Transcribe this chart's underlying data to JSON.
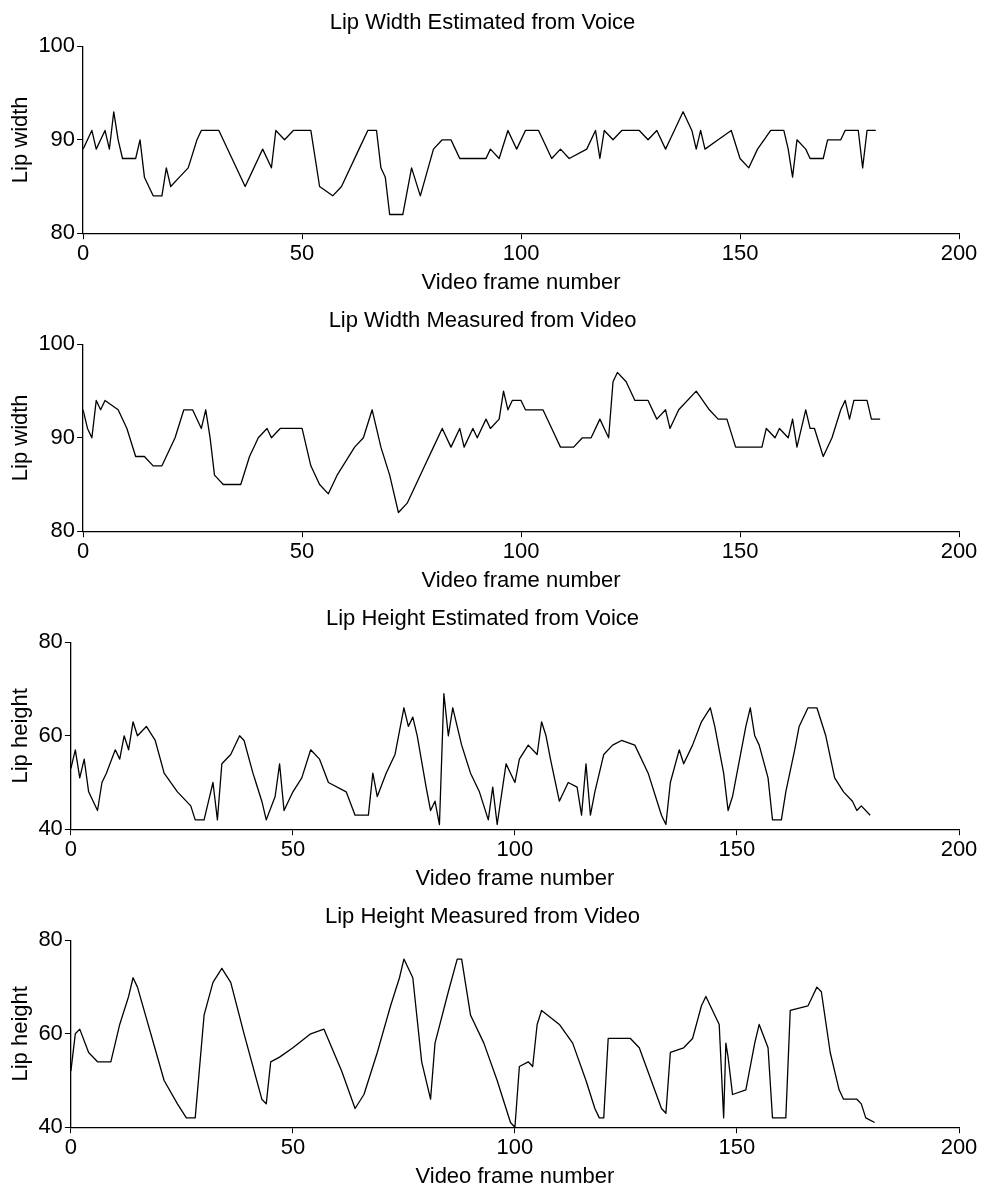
{
  "chart_data": [
    {
      "type": "line",
      "title": "Lip Width Estimated from Voice",
      "xlabel": "Video frame number",
      "ylabel": "Lip width",
      "xlim": [
        0,
        200
      ],
      "ylim": [
        80,
        100
      ],
      "xticks": [
        0,
        50,
        100,
        150,
        200
      ],
      "yticks": [
        80,
        90,
        100
      ],
      "grid": false,
      "legend": false,
      "marker": "none",
      "line_style": "solid",
      "x": [
        0,
        1,
        2,
        3,
        4,
        5,
        6,
        7,
        8,
        9,
        12,
        13,
        14,
        16,
        18,
        19,
        20,
        22,
        24,
        26,
        27,
        31,
        34,
        37,
        40,
        41,
        43,
        44,
        46,
        48,
        52,
        54,
        57,
        59,
        63,
        65,
        67,
        68,
        69,
        70,
        73,
        75,
        77,
        80,
        82,
        84,
        85,
        86,
        92,
        93,
        95,
        97,
        99,
        101,
        104,
        107,
        109,
        111,
        115,
        117,
        118,
        119,
        121,
        123,
        127,
        129,
        131,
        133,
        134,
        135,
        137,
        139,
        140,
        141,
        142,
        145,
        148,
        150,
        152,
        154,
        157,
        160,
        161,
        162,
        163,
        165,
        166,
        169,
        170,
        173,
        174,
        177,
        178,
        179,
        181
      ],
      "series": [
        {
          "color": "#000000",
          "values": [
            89,
            90,
            91,
            89,
            90,
            91,
            89,
            93,
            90,
            88,
            88,
            90,
            86,
            84,
            84,
            87,
            85,
            86,
            87,
            90,
            91,
            91,
            88,
            85,
            88,
            89,
            87,
            91,
            90,
            91,
            91,
            85,
            84,
            85,
            89,
            91,
            91,
            87,
            86,
            82,
            82,
            87,
            84,
            89,
            90,
            90,
            89,
            88,
            88,
            89,
            88,
            91,
            89,
            91,
            91,
            88,
            89,
            88,
            89,
            91,
            88,
            91,
            90,
            91,
            91,
            90,
            91,
            89,
            90,
            91,
            93,
            91,
            89,
            91,
            89,
            90,
            91,
            88,
            87,
            89,
            91,
            91,
            89,
            86,
            90,
            89,
            88,
            88,
            90,
            90,
            91,
            91,
            87,
            91,
            91
          ]
        }
      ]
    },
    {
      "type": "line",
      "title": "Lip Width Measured from Video",
      "xlabel": "Video frame number",
      "ylabel": "Lip width",
      "xlim": [
        0,
        200
      ],
      "ylim": [
        80,
        100
      ],
      "xticks": [
        0,
        50,
        100,
        150,
        200
      ],
      "yticks": [
        80,
        90,
        100
      ],
      "grid": false,
      "legend": false,
      "marker": "none",
      "line_style": "solid",
      "x": [
        0,
        1,
        2,
        3,
        4,
        5,
        8,
        10,
        12,
        14,
        16,
        18,
        21,
        23,
        25,
        27,
        28,
        29,
        30,
        32,
        36,
        38,
        40,
        42,
        43,
        45,
        50,
        52,
        54,
        56,
        58,
        62,
        64,
        66,
        68,
        70,
        72,
        74,
        76,
        78,
        80,
        82,
        84,
        86,
        87,
        89,
        90,
        92,
        93,
        95,
        96,
        97,
        98,
        100,
        101,
        105,
        108,
        109,
        112,
        114,
        116,
        118,
        119,
        120,
        121,
        122,
        124,
        126,
        129,
        131,
        133,
        134,
        136,
        140,
        143,
        145,
        147,
        149,
        153,
        155,
        156,
        158,
        159,
        161,
        162,
        163,
        165,
        166,
        167,
        169,
        171,
        173,
        174,
        175,
        176,
        179,
        180,
        182
      ],
      "series": [
        {
          "color": "#000000",
          "values": [
            93,
            91,
            90,
            94,
            93,
            94,
            93,
            91,
            88,
            88,
            87,
            87,
            90,
            93,
            93,
            91,
            93,
            90,
            86,
            85,
            85,
            88,
            90,
            91,
            90,
            91,
            91,
            87,
            85,
            84,
            86,
            89,
            90,
            93,
            89,
            86,
            82,
            83,
            85,
            87,
            89,
            91,
            89,
            91,
            89,
            91,
            90,
            92,
            91,
            92,
            95,
            93,
            94,
            94,
            93,
            93,
            90,
            89,
            89,
            90,
            90,
            92,
            91,
            90,
            96,
            97,
            96,
            94,
            94,
            92,
            93,
            91,
            93,
            95,
            93,
            92,
            92,
            89,
            89,
            89,
            91,
            90,
            91,
            90,
            92,
            89,
            93,
            91,
            91,
            88,
            90,
            93,
            94,
            92,
            94,
            94,
            92,
            92
          ]
        }
      ]
    },
    {
      "type": "line",
      "title": "Lip Height Estimated from Voice",
      "xlabel": "Video frame number",
      "ylabel": "Lip height",
      "xlim": [
        0,
        200
      ],
      "ylim": [
        40,
        80
      ],
      "xticks": [
        0,
        50,
        100,
        150,
        200
      ],
      "yticks": [
        40,
        60,
        80
      ],
      "grid": false,
      "legend": false,
      "marker": "none",
      "line_style": "solid",
      "x": [
        0,
        1,
        2,
        3,
        4,
        6,
        7,
        8,
        10,
        11,
        12,
        13,
        14,
        15,
        17,
        19,
        21,
        24,
        27,
        28,
        30,
        31,
        32,
        33,
        34,
        36,
        38,
        39,
        41,
        43,
        44,
        46,
        47,
        48,
        50,
        52,
        54,
        56,
        58,
        62,
        64,
        67,
        68,
        69,
        71,
        73,
        75,
        76,
        77,
        78,
        80,
        81,
        82,
        83,
        84,
        85,
        86,
        88,
        90,
        92,
        94,
        95,
        96,
        98,
        100,
        101,
        103,
        105,
        106,
        107,
        108,
        110,
        112,
        114,
        115,
        116,
        117,
        118,
        120,
        122,
        124,
        127,
        130,
        133,
        134,
        135,
        137,
        138,
        140,
        142,
        144,
        145,
        147,
        148,
        149,
        150,
        152,
        153,
        154,
        155,
        157,
        158,
        160,
        161,
        163,
        164,
        166,
        168,
        170,
        172,
        174,
        176,
        177,
        178,
        180
      ],
      "series": [
        {
          "color": "#000000",
          "values": [
            53,
            57,
            51,
            55,
            48,
            44,
            50,
            52,
            57,
            55,
            60,
            57,
            63,
            60,
            62,
            59,
            52,
            48,
            45,
            42,
            42,
            46,
            50,
            42,
            54,
            56,
            60,
            59,
            52,
            46,
            42,
            47,
            54,
            44,
            48,
            51,
            57,
            55,
            50,
            48,
            43,
            43,
            52,
            47,
            52,
            56,
            66,
            62,
            64,
            60,
            49,
            44,
            46,
            41,
            69,
            60,
            66,
            58,
            52,
            48,
            42,
            49,
            41,
            54,
            50,
            55,
            58,
            56,
            63,
            60,
            55,
            46,
            50,
            49,
            43,
            54,
            43,
            48,
            56,
            58,
            59,
            58,
            52,
            43,
            41,
            50,
            57,
            54,
            58,
            63,
            66,
            62,
            52,
            44,
            47,
            52,
            62,
            66,
            60,
            58,
            51,
            42,
            42,
            48,
            57,
            62,
            66,
            66,
            60,
            51,
            48,
            46,
            44,
            45,
            43
          ]
        }
      ]
    },
    {
      "type": "line",
      "title": "Lip Height Measured from Video",
      "xlabel": "Video frame number",
      "ylabel": "Lip height",
      "xlim": [
        0,
        200
      ],
      "ylim": [
        40,
        80
      ],
      "xticks": [
        0,
        50,
        100,
        150,
        200
      ],
      "yticks": [
        40,
        60,
        80
      ],
      "grid": false,
      "legend": false,
      "marker": "none",
      "line_style": "solid",
      "x": [
        0,
        1,
        2,
        4,
        6,
        9,
        11,
        13,
        14,
        15,
        18,
        21,
        24,
        26,
        28,
        30,
        32,
        34,
        36,
        39,
        43,
        44,
        45,
        47,
        50,
        54,
        57,
        61,
        64,
        66,
        69,
        72,
        74,
        75,
        77,
        79,
        81,
        82,
        85,
        87,
        88,
        90,
        93,
        96,
        99,
        100,
        101,
        103,
        104,
        105,
        106,
        110,
        113,
        116,
        118,
        119,
        120,
        121,
        126,
        128,
        133,
        134,
        135,
        138,
        140,
        142,
        143,
        146,
        147,
        147.5,
        148,
        149,
        152,
        154,
        155,
        157,
        158,
        161,
        162,
        166,
        167,
        168,
        169,
        171,
        173,
        174,
        177,
        178,
        179,
        181
      ],
      "series": [
        {
          "color": "#000000",
          "values": [
            52,
            60,
            61,
            56,
            54,
            54,
            62,
            68,
            72,
            70,
            60,
            50,
            45,
            42,
            42,
            64,
            71,
            74,
            71,
            60,
            46,
            45,
            54,
            55,
            57,
            60,
            61,
            52,
            44,
            47,
            56,
            66,
            72,
            76,
            72,
            54,
            46,
            58,
            69,
            76,
            76,
            64,
            58,
            50,
            41,
            40,
            53,
            54,
            53,
            62,
            65,
            62,
            58,
            50,
            44,
            42,
            42,
            59,
            59,
            57,
            44,
            43,
            56,
            57,
            59,
            66,
            68,
            62,
            42,
            58,
            55,
            47,
            48,
            58,
            62,
            57,
            42,
            42,
            65,
            66,
            68,
            70,
            69,
            56,
            48,
            46,
            46,
            45,
            42,
            41
          ]
        }
      ]
    }
  ]
}
